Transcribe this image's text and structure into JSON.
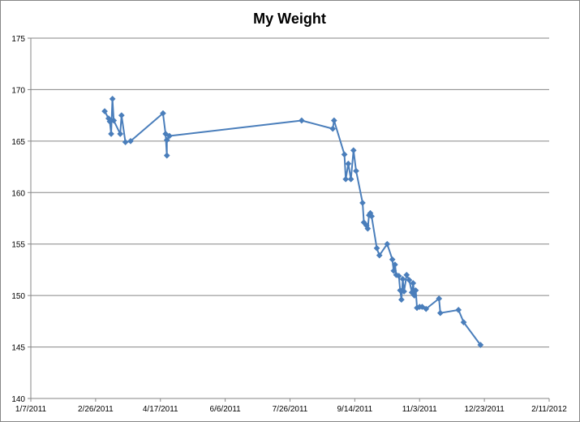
{
  "chart_data": {
    "type": "line",
    "title": "My Weight",
    "xlabel": "",
    "ylabel": "",
    "x_ticks": [
      "1/7/2011",
      "2/26/2011",
      "4/17/2011",
      "6/6/2011",
      "7/26/2011",
      "9/14/2011",
      "11/3/2011",
      "12/23/2011",
      "2/11/2012"
    ],
    "y_ticks": [
      "140",
      "145",
      "150",
      "155",
      "160",
      "165",
      "170",
      "175"
    ],
    "xlim": [
      "2011-01-07",
      "2012-02-11"
    ],
    "ylim": [
      140,
      175
    ],
    "grid": "horizontal",
    "legend": "none",
    "color": "#4a7ebb",
    "series": [
      {
        "points": [
          [
            "2011-03-05",
            167.9
          ],
          [
            "2011-03-08",
            167.2
          ],
          [
            "2011-03-09",
            166.9
          ],
          [
            "2011-03-10",
            165.7
          ],
          [
            "2011-03-11",
            169.1
          ],
          [
            "2011-03-12",
            167.0
          ],
          [
            "2011-03-17",
            165.7
          ],
          [
            "2011-03-18",
            167.5
          ],
          [
            "2011-03-21",
            164.9
          ],
          [
            "2011-03-25",
            165.0
          ],
          [
            "2011-04-19",
            167.7
          ],
          [
            "2011-04-21",
            165.7
          ],
          [
            "2011-04-22",
            163.6
          ],
          [
            "2011-04-22",
            165.1
          ],
          [
            "2011-04-24",
            165.5
          ],
          [
            "2011-08-04",
            167.0
          ],
          [
            "2011-08-28",
            166.2
          ],
          [
            "2011-08-29",
            167.0
          ],
          [
            "2011-09-06",
            163.7
          ],
          [
            "2011-09-07",
            161.3
          ],
          [
            "2011-09-09",
            162.8
          ],
          [
            "2011-09-11",
            161.3
          ],
          [
            "2011-09-13",
            164.1
          ],
          [
            "2011-09-15",
            162.1
          ],
          [
            "2011-09-20",
            159.0
          ],
          [
            "2011-09-21",
            157.1
          ],
          [
            "2011-09-23",
            156.8
          ],
          [
            "2011-09-24",
            156.5
          ],
          [
            "2011-09-25",
            157.8
          ],
          [
            "2011-09-26",
            158.0
          ],
          [
            "2011-09-27",
            157.7
          ],
          [
            "2011-10-01",
            154.6
          ],
          [
            "2011-10-03",
            153.9
          ],
          [
            "2011-10-09",
            155.0
          ],
          [
            "2011-10-13",
            153.5
          ],
          [
            "2011-10-14",
            152.4
          ],
          [
            "2011-10-15",
            153.0
          ],
          [
            "2011-10-16",
            152.0
          ],
          [
            "2011-10-18",
            151.9
          ],
          [
            "2011-10-19",
            150.5
          ],
          [
            "2011-10-20",
            149.6
          ],
          [
            "2011-10-21",
            151.6
          ],
          [
            "2011-10-22",
            150.4
          ],
          [
            "2011-10-24",
            152.0
          ],
          [
            "2011-10-26",
            151.5
          ],
          [
            "2011-10-28",
            150.3
          ],
          [
            "2011-10-29",
            151.2
          ],
          [
            "2011-10-30",
            150.0
          ],
          [
            "2011-10-31",
            150.5
          ],
          [
            "2011-11-01",
            148.8
          ],
          [
            "2011-11-03",
            148.9
          ],
          [
            "2011-11-05",
            148.9
          ],
          [
            "2011-11-08",
            148.7
          ],
          [
            "2011-11-18",
            149.7
          ],
          [
            "2011-11-19",
            148.3
          ],
          [
            "2011-12-03",
            148.6
          ],
          [
            "2011-12-07",
            147.4
          ],
          [
            "2011-12-20",
            145.2
          ]
        ]
      }
    ]
  }
}
